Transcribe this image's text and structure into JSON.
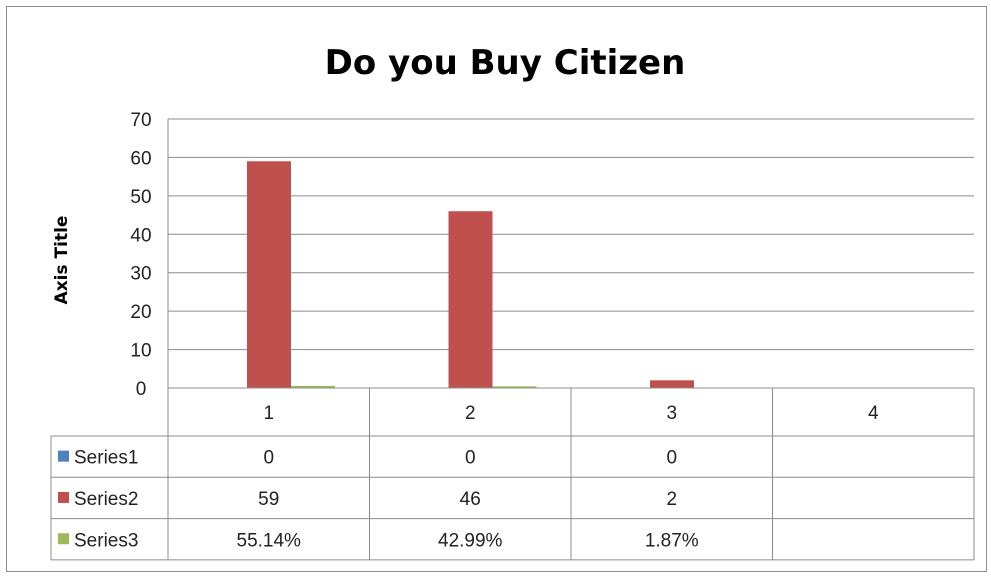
{
  "chart_data": {
    "type": "bar",
    "title": "Do you Buy Citizen",
    "xlabel": "",
    "ylabel": "Axis Title",
    "ylim": [
      0,
      70
    ],
    "yticks": [
      0,
      10,
      20,
      30,
      40,
      50,
      60,
      70
    ],
    "grid": true,
    "legend": "data-table",
    "categories": [
      "1",
      "2",
      "3",
      "4"
    ],
    "series": [
      {
        "name": "Series1",
        "color": "#4f81bd",
        "values": [
          0,
          0,
          0,
          null
        ],
        "labels": [
          "0",
          "0",
          "0",
          ""
        ]
      },
      {
        "name": "Series2",
        "color": "#c0504d",
        "values": [
          59,
          46,
          2,
          null
        ],
        "labels": [
          "59",
          "46",
          "2",
          ""
        ]
      },
      {
        "name": "Series3",
        "color": "#9bbb59",
        "values": [
          0.5514,
          0.4299,
          0.0187,
          null
        ],
        "labels": [
          "55.14%",
          "42.99%",
          "1.87%",
          ""
        ]
      }
    ]
  }
}
